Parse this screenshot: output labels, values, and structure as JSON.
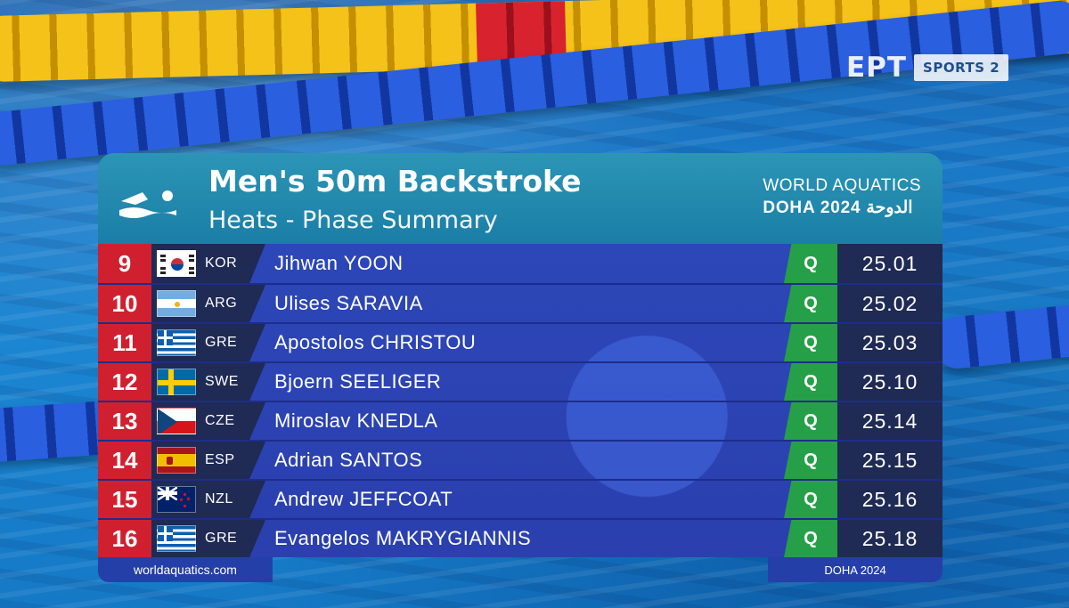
{
  "broadcaster": {
    "logo": "ΕΡΤ",
    "channel": "SPORTS 2"
  },
  "header": {
    "icon": "swimmer-icon",
    "title": "Men's 50m Backstroke",
    "subtitle": "Heats - Phase Summary",
    "org_line1": "WORLD AQUATICS",
    "org_line2": "DOHA 2024 الدوحة"
  },
  "results": [
    {
      "rank": "9",
      "flag": "kor",
      "code": "KOR",
      "name": "Jihwan YOON",
      "qual": "Q",
      "time": "25.01"
    },
    {
      "rank": "10",
      "flag": "arg",
      "code": "ARG",
      "name": "Ulises SARAVIA",
      "qual": "Q",
      "time": "25.02"
    },
    {
      "rank": "11",
      "flag": "gre",
      "code": "GRE",
      "name": "Apostolos CHRISTOU",
      "qual": "Q",
      "time": "25.03"
    },
    {
      "rank": "12",
      "flag": "swe",
      "code": "SWE",
      "name": "Bjoern SEELIGER",
      "qual": "Q",
      "time": "25.10"
    },
    {
      "rank": "13",
      "flag": "cze",
      "code": "CZE",
      "name": "Miroslav KNEDLA",
      "qual": "Q",
      "time": "25.14"
    },
    {
      "rank": "14",
      "flag": "esp",
      "code": "ESP",
      "name": "Adrian SANTOS",
      "qual": "Q",
      "time": "25.15"
    },
    {
      "rank": "15",
      "flag": "nzl",
      "code": "NZL",
      "name": "Andrew JEFFCOAT",
      "qual": "Q",
      "time": "25.16"
    },
    {
      "rank": "16",
      "flag": "gre",
      "code": "GRE",
      "name": "Evangelos MAKRYGIANNIS",
      "qual": "Q",
      "time": "25.18"
    }
  ],
  "footer": {
    "left": "worldaquatics.com",
    "right": "DOHA 2024"
  },
  "colors": {
    "rank_bg": "#d0202f",
    "qualified_bg": "#26a048",
    "header_bg": "#1a7ea6",
    "rows_bg": "#2b3fae"
  }
}
